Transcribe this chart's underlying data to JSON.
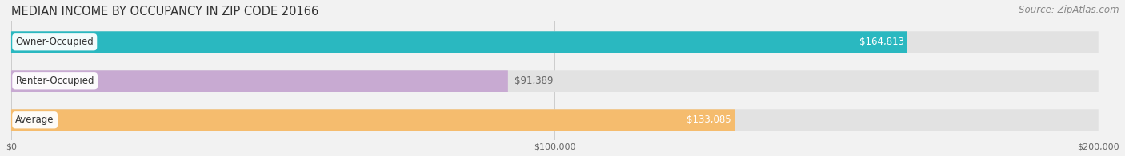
{
  "title": "MEDIAN INCOME BY OCCUPANCY IN ZIP CODE 20166",
  "source": "Source: ZipAtlas.com",
  "categories": [
    "Owner-Occupied",
    "Renter-Occupied",
    "Average"
  ],
  "values": [
    164813,
    91389,
    133085
  ],
  "labels": [
    "$164,813",
    "$91,389",
    "$133,085"
  ],
  "bar_colors": [
    "#2ab8c0",
    "#c8aad2",
    "#f5bc6e"
  ],
  "label_in_bar": [
    true,
    false,
    true
  ],
  "label_color_in": "#ffffff",
  "label_color_out": "#666666",
  "x_max": 200000,
  "x_tick_labels": [
    "$0",
    "$100,000",
    "$200,000"
  ],
  "background_color": "#f2f2f2",
  "bar_bg_color": "#e2e2e2",
  "title_fontsize": 10.5,
  "source_fontsize": 8.5,
  "label_fontsize": 8.5,
  "category_fontsize": 8.5,
  "bar_height": 0.55,
  "bar_gap": 0.18
}
